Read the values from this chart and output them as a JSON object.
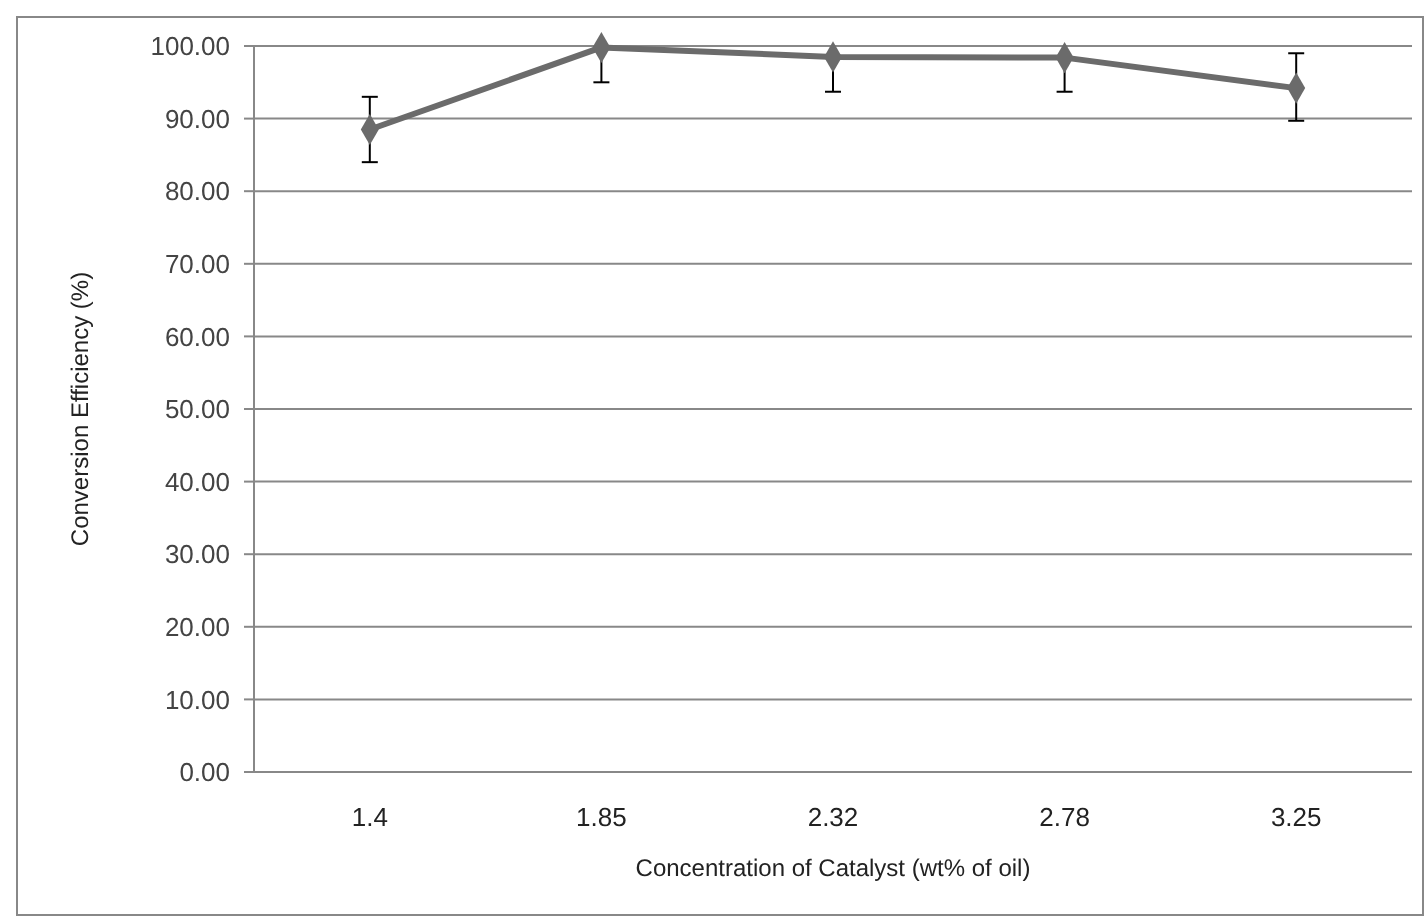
{
  "chart_data": {
    "type": "line",
    "xlabel": "Concentration of Catalyst (wt% of oil)",
    "ylabel": "Conversion Efficiency (%)",
    "categories": [
      "1.4",
      "1.85",
      "2.32",
      "2.78",
      "3.25"
    ],
    "series": [
      {
        "color": "#6b6b6b",
        "values": [
          88.5,
          99.8,
          98.5,
          98.4,
          94.2
        ],
        "errors": [
          [
            84,
            93
          ],
          [
            95,
            99.8
          ],
          [
            93.7,
            98.5
          ],
          [
            93.7,
            98.4
          ],
          [
            89.7,
            99
          ]
        ]
      }
    ],
    "ylim": [
      0,
      100
    ],
    "yticks": [
      {
        "value": 0,
        "label": "0.00"
      },
      {
        "value": 10,
        "label": "10.00"
      },
      {
        "value": 20,
        "label": "20.00"
      },
      {
        "value": 30,
        "label": "30.00"
      },
      {
        "value": 40,
        "label": "40.00"
      },
      {
        "value": 50,
        "label": "50.00"
      },
      {
        "value": 60,
        "label": "60.00"
      },
      {
        "value": 70,
        "label": "70.00"
      },
      {
        "value": 80,
        "label": "80.00"
      },
      {
        "value": 90,
        "label": "90.00"
      },
      {
        "value": 100,
        "label": "100.00"
      }
    ],
    "grid": "y",
    "marker": "diamond",
    "line_style": "solid"
  }
}
